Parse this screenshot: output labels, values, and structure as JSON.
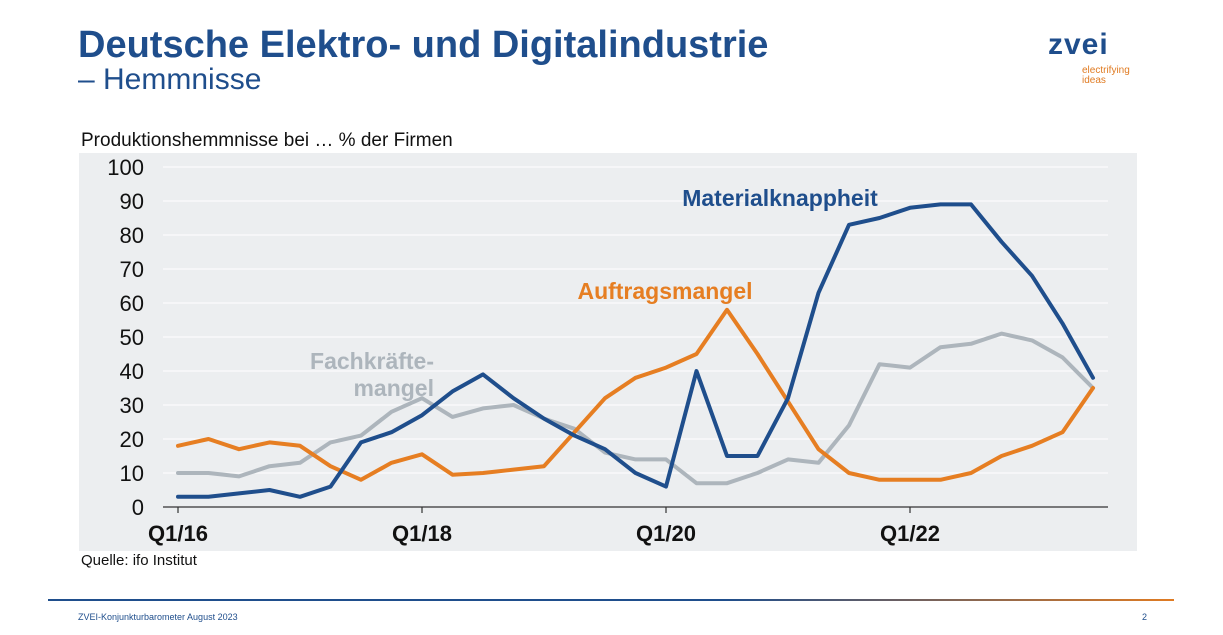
{
  "slide": {
    "title": "Deutsche Elektro- und Digitalindustrie",
    "subtitle": "– Hemmnisse",
    "logo_word": "zvei",
    "logo_tag_1": "electrifying",
    "logo_tag_2": "ideas",
    "chart_caption": "Produktionshemmnisse bei … % der Firmen",
    "source": "Quelle: ifo Institut",
    "footer": "ZVEI-Konjunkturbarometer August 2023",
    "page_number": "2"
  },
  "colors": {
    "brand_blue": "#1f4e8c",
    "orange": "#e67e22",
    "gray": "#adb5bc",
    "plot_bg": "#eceef0"
  },
  "chart_data": {
    "type": "line",
    "title": "",
    "xlabel": "",
    "ylabel": "",
    "ylim": [
      0,
      100
    ],
    "yticks": [
      0,
      10,
      20,
      30,
      40,
      50,
      60,
      70,
      80,
      90,
      100
    ],
    "x_tick_labels": [
      {
        "label": "Q1/16",
        "index": 0
      },
      {
        "label": "Q1/18",
        "index": 8
      },
      {
        "label": "Q1/20",
        "index": 16
      },
      {
        "label": "Q1/22",
        "index": 24
      }
    ],
    "grid": true,
    "series": [
      {
        "name": "Materialknappheit",
        "color": "#1f4e8c",
        "values": [
          3,
          3,
          4,
          5,
          3,
          6,
          19,
          22,
          27,
          34,
          39,
          32,
          26,
          21,
          17,
          10,
          6,
          40,
          15,
          15,
          32,
          63,
          83,
          85,
          88,
          89,
          89,
          78,
          68,
          54,
          38
        ]
      },
      {
        "name": "Auftragsmangel",
        "color": "#e67e22",
        "values": [
          18,
          20,
          17,
          19,
          18,
          12,
          8,
          13,
          15.5,
          9.5,
          10,
          11,
          12,
          22,
          32,
          38,
          41,
          45,
          58,
          45,
          31,
          17,
          10,
          8,
          8,
          8,
          10,
          15,
          18,
          22,
          35
        ]
      },
      {
        "name": "Fachkräfte-\nmangel",
        "name_line1": "Fachkräfte-",
        "name_line2": "mangel",
        "color": "#adb5bc",
        "values": [
          10,
          10,
          9,
          12,
          13,
          19,
          21,
          28,
          32,
          26.5,
          29,
          30,
          26,
          23,
          16,
          14,
          14,
          7,
          7,
          10,
          14,
          13,
          24,
          42,
          41,
          47,
          48,
          51,
          49,
          44,
          35
        ]
      }
    ]
  }
}
